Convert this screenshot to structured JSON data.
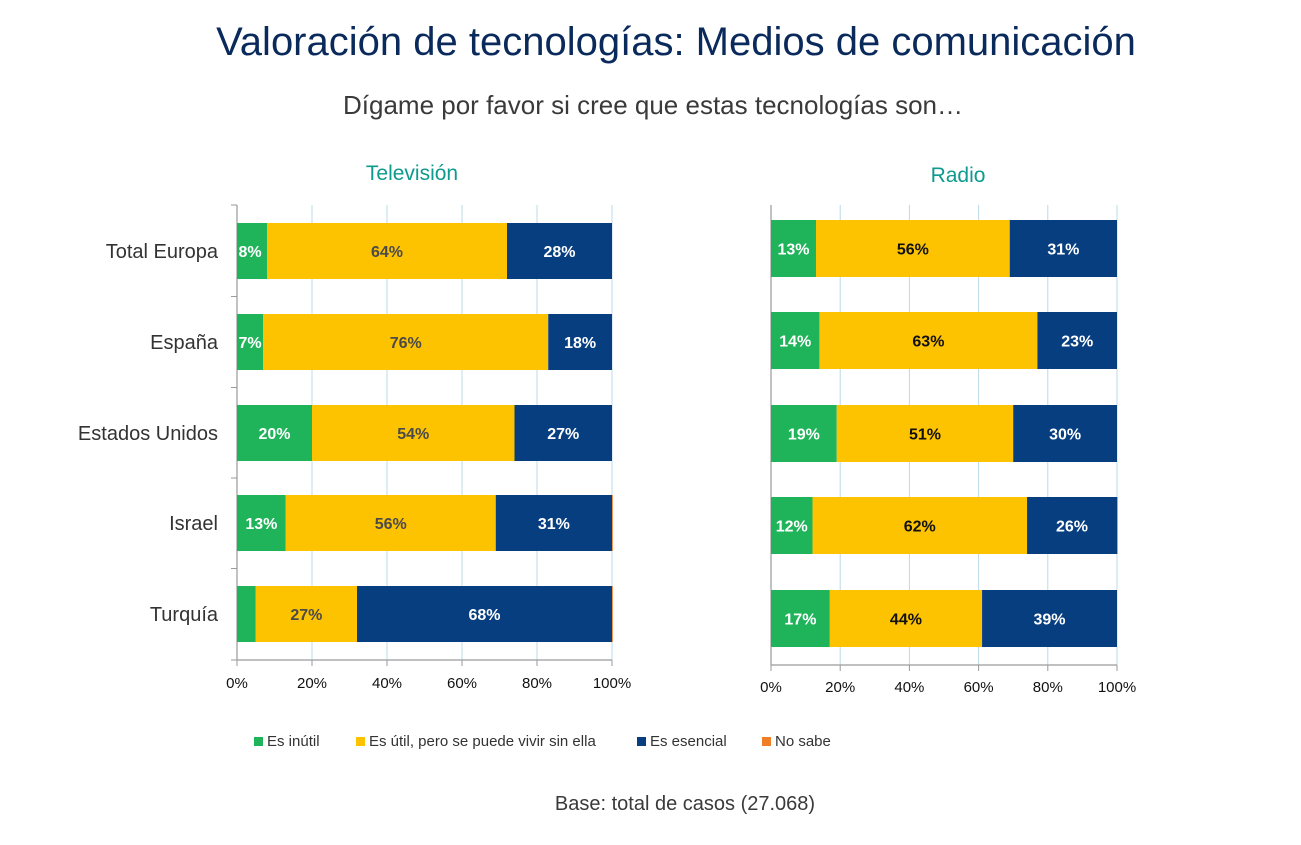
{
  "title": "Valoración de tecnologías: Medios de comunicación",
  "subtitle": "Dígame por favor si cree que estas tecnologías son…",
  "footnote": "Base: total de casos (27.068)",
  "colors": {
    "es_inutil": "#1fb35a",
    "es_util": "#fdc300",
    "es_esencial": "#073e80",
    "no_sabe": "#f07e26",
    "grid": "#bcd8ea",
    "axis": "#9a9a9a",
    "panel_title": "#0e9a8e"
  },
  "legend": [
    {
      "label": "Es inútil",
      "color": "#1fb35a"
    },
    {
      "label": "Es útil, pero se puede vivir sin ella",
      "color": "#fdc300"
    },
    {
      "label": "Es esencial",
      "color": "#073e80"
    },
    {
      "label": "No sabe",
      "color": "#f07e26"
    }
  ],
  "chart_data": [
    {
      "type": "bar",
      "stacked": true,
      "orientation": "horizontal",
      "title": "Televisión",
      "categories": [
        "Total Europa",
        "España",
        "Estados Unidos",
        "Israel",
        "Turquía"
      ],
      "xlim": [
        0,
        100
      ],
      "xticks": [
        "0%",
        "20%",
        "40%",
        "60%",
        "80%",
        "100%"
      ],
      "grid": true,
      "legend_position": "bottom",
      "series": [
        {
          "name": "Es inútil",
          "values": [
            8,
            7,
            20,
            13,
            5
          ],
          "labels": [
            "8%",
            "7%",
            "20%",
            "13%",
            ""
          ],
          "label_color": "#ffffff"
        },
        {
          "name": "Es útil, pero se puede vivir sin ella",
          "values": [
            64,
            76,
            54,
            56,
            27
          ],
          "labels": [
            "64%",
            "76%",
            "54%",
            "56%",
            "27%"
          ],
          "label_color": "#4a4a4a"
        },
        {
          "name": "Es esencial",
          "values": [
            28,
            18,
            27,
            31,
            68
          ],
          "labels": [
            "28%",
            "18%",
            "27%",
            "31%",
            "68%"
          ],
          "label_color": "#ffffff"
        },
        {
          "name": "No sabe",
          "values": [
            0,
            0,
            0,
            0.5,
            0.3
          ],
          "labels": [
            "",
            "",
            "",
            "",
            ""
          ],
          "label_color": "#ffffff"
        }
      ]
    },
    {
      "type": "bar",
      "stacked": true,
      "orientation": "horizontal",
      "title": "Radio",
      "categories": [
        "Total Europa",
        "España",
        "Estados Unidos",
        "Israel",
        "Turquía"
      ],
      "xlim": [
        0,
        100
      ],
      "xticks": [
        "0%",
        "20%",
        "40%",
        "60%",
        "80%",
        "100%"
      ],
      "grid": true,
      "legend_position": "bottom",
      "series": [
        {
          "name": "Es inútil",
          "values": [
            13,
            14,
            19,
            12,
            17
          ],
          "labels": [
            "13%",
            "14%",
            "19%",
            "12%",
            "17%"
          ],
          "label_color": "#ffffff"
        },
        {
          "name": "Es útil, pero se puede vivir sin ella",
          "values": [
            56,
            63,
            51,
            62,
            44
          ],
          "labels": [
            "56%",
            "63%",
            "51%",
            "62%",
            "44%"
          ],
          "label_color": "#111111"
        },
        {
          "name": "Es esencial",
          "values": [
            31,
            23,
            30,
            26,
            39
          ],
          "labels": [
            "31%",
            "23%",
            "30%",
            "26%",
            "39%"
          ],
          "label_color": "#ffffff"
        },
        {
          "name": "No sabe",
          "values": [
            0,
            0,
            0,
            0.4,
            0
          ],
          "labels": [
            "",
            "",
            "",
            "",
            ""
          ],
          "label_color": "#ffffff"
        }
      ]
    }
  ]
}
